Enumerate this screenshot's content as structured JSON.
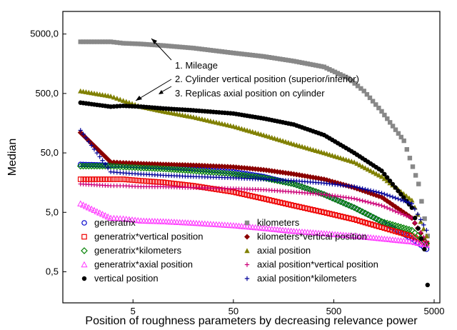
{
  "chart_data": {
    "type": "scatter",
    "xlabel": "Position of roughness parameters by decreasing relevance power",
    "ylabel": "Median",
    "xscale": "log",
    "yscale": "log",
    "xlim": [
      1,
      5700
    ],
    "ylim": [
      0.15,
      12000
    ],
    "xticks": [
      5,
      50,
      500,
      5000
    ],
    "xtick_labels": [
      "5",
      "50",
      "500",
      "5000"
    ],
    "yticks": [
      0.5,
      5,
      50,
      500,
      5000
    ],
    "ytick_labels": [
      "0,5",
      "5,0",
      "50,0",
      "500,0",
      "5000,0"
    ],
    "grid": false,
    "legend_position": "bottom-left",
    "annotations": [
      "1. Mileage",
      "2. Cylinder vertical position (superior/inferior)",
      "3. Replicas axial position on cylinder"
    ],
    "series": [
      {
        "name": "generatrix",
        "marker": "circle-open",
        "color": "#0000cc",
        "points": [
          [
            1.5,
            32
          ],
          [
            3,
            31
          ],
          [
            4,
            31
          ],
          [
            6,
            30
          ],
          [
            10,
            29
          ],
          [
            20,
            27
          ],
          [
            50,
            24
          ],
          [
            100,
            20
          ],
          [
            200,
            15
          ],
          [
            400,
            10
          ],
          [
            800,
            6
          ],
          [
            1500,
            3.5
          ],
          [
            3000,
            1.8
          ],
          [
            4200,
            1.2
          ]
        ]
      },
      {
        "name": "kilometers",
        "marker": "square-filled",
        "color": "#888888",
        "points": [
          [
            1.5,
            3700
          ],
          [
            3,
            3700
          ],
          [
            4,
            3500
          ],
          [
            6,
            3400
          ],
          [
            10,
            3200
          ],
          [
            20,
            2900
          ],
          [
            50,
            2400
          ],
          [
            100,
            2100
          ],
          [
            200,
            1750
          ],
          [
            400,
            1400
          ],
          [
            700,
            900
          ],
          [
            1000,
            550
          ],
          [
            1500,
            250
          ],
          [
            2500,
            80
          ],
          [
            3500,
            15
          ],
          [
            4300,
            2
          ]
        ]
      },
      {
        "name": "generatrix*vertical position",
        "marker": "square-open",
        "color": "#ee0000",
        "points": [
          [
            1.5,
            18
          ],
          [
            3,
            18
          ],
          [
            4,
            18
          ],
          [
            6,
            17
          ],
          [
            10,
            16
          ],
          [
            20,
            14
          ],
          [
            50,
            11
          ],
          [
            100,
            8.5
          ],
          [
            200,
            6.5
          ],
          [
            400,
            5
          ],
          [
            800,
            3.8
          ],
          [
            1500,
            2.8
          ],
          [
            3000,
            2
          ],
          [
            4200,
            1.5
          ]
        ]
      },
      {
        "name": "kilometers*vertical position",
        "marker": "diamond-filled",
        "color": "#8b0000",
        "points": [
          [
            1.5,
            110
          ],
          [
            3,
            35
          ],
          [
            4,
            34
          ],
          [
            6,
            33
          ],
          [
            10,
            32
          ],
          [
            20,
            31
          ],
          [
            50,
            29
          ],
          [
            100,
            26
          ],
          [
            200,
            22
          ],
          [
            400,
            18
          ],
          [
            800,
            13
          ],
          [
            1500,
            9
          ],
          [
            3000,
            4
          ],
          [
            4200,
            1.5
          ]
        ]
      },
      {
        "name": "generatrix*kilometers",
        "marker": "diamond-open",
        "color": "#008000",
        "points": [
          [
            1.5,
            30
          ],
          [
            3,
            30
          ],
          [
            4,
            29
          ],
          [
            6,
            28
          ],
          [
            10,
            27
          ],
          [
            20,
            25
          ],
          [
            50,
            22
          ],
          [
            100,
            19
          ],
          [
            200,
            15
          ],
          [
            400,
            10
          ],
          [
            800,
            6
          ],
          [
            1500,
            3.5
          ],
          [
            3000,
            2.5
          ],
          [
            4200,
            1.5
          ]
        ]
      },
      {
        "name": "axial position",
        "marker": "triangle-filled",
        "color": "#808000",
        "points": [
          [
            1.5,
            550
          ],
          [
            3,
            450
          ],
          [
            4,
            380
          ],
          [
            6,
            300
          ],
          [
            10,
            250
          ],
          [
            20,
            200
          ],
          [
            50,
            140
          ],
          [
            100,
            100
          ],
          [
            200,
            70
          ],
          [
            400,
            50
          ],
          [
            800,
            35
          ],
          [
            1500,
            20
          ],
          [
            3000,
            8
          ],
          [
            4200,
            2
          ]
        ]
      },
      {
        "name": "generatrix*axial position",
        "marker": "triangle-open",
        "color": "#ff33ff",
        "points": [
          [
            1.5,
            7
          ],
          [
            3,
            4
          ],
          [
            4,
            3.9
          ],
          [
            6,
            3.6
          ],
          [
            10,
            3.5
          ],
          [
            20,
            3.3
          ],
          [
            50,
            3
          ],
          [
            100,
            2.7
          ],
          [
            200,
            2.4
          ],
          [
            400,
            2.2
          ],
          [
            800,
            2
          ],
          [
            1500,
            1.8
          ],
          [
            3000,
            1.6
          ],
          [
            4200,
            1.4
          ]
        ]
      },
      {
        "name": "axial position*vertical position",
        "marker": "plus",
        "color": "#cc0077",
        "points": [
          [
            1.5,
            15
          ],
          [
            3,
            14
          ],
          [
            4,
            14
          ],
          [
            6,
            13.5
          ],
          [
            10,
            13.5
          ],
          [
            20,
            13
          ],
          [
            50,
            12.5
          ],
          [
            100,
            12
          ],
          [
            200,
            11
          ],
          [
            400,
            10
          ],
          [
            800,
            8.5
          ],
          [
            1500,
            6.5
          ],
          [
            3000,
            4
          ],
          [
            4200,
            1.6
          ]
        ]
      },
      {
        "name": "vertical position",
        "marker": "circle-filled",
        "color": "#000000",
        "points": [
          [
            1.5,
            350
          ],
          [
            3,
            300
          ],
          [
            4,
            310
          ],
          [
            6,
            300
          ],
          [
            10,
            280
          ],
          [
            20,
            260
          ],
          [
            50,
            230
          ],
          [
            100,
            190
          ],
          [
            200,
            150
          ],
          [
            400,
            100
          ],
          [
            800,
            50
          ],
          [
            1500,
            25
          ],
          [
            3000,
            6
          ],
          [
            4000,
            1.2
          ],
          [
            4300,
            0.3
          ]
        ]
      },
      {
        "name": "axial position*kilometers",
        "marker": "plus",
        "color": "#000099",
        "points": [
          [
            1.5,
            120
          ],
          [
            3,
            24
          ],
          [
            4,
            23
          ],
          [
            6,
            22
          ],
          [
            10,
            21
          ],
          [
            20,
            20
          ],
          [
            50,
            19
          ],
          [
            100,
            18
          ],
          [
            200,
            17
          ],
          [
            400,
            15.5
          ],
          [
            800,
            13.5
          ],
          [
            1500,
            10.5
          ],
          [
            3000,
            7
          ],
          [
            4200,
            2.5
          ]
        ]
      }
    ]
  }
}
